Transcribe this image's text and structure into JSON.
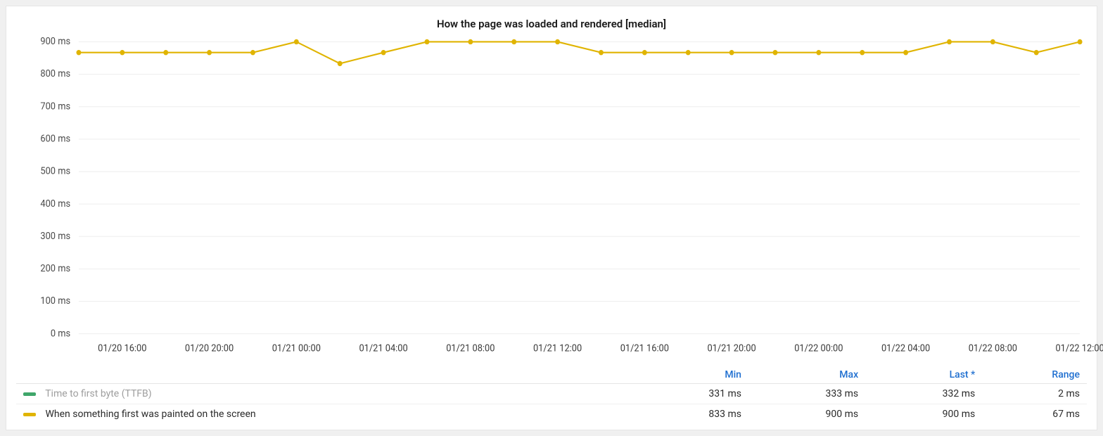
{
  "chart": {
    "type": "line",
    "title": "How the page was loaded and rendered [median]",
    "title_fontsize": 15,
    "title_fontweight": 600,
    "background_color": "#ffffff",
    "page_background": "#f0f0f0",
    "grid_color": "#eeeeee",
    "ylabel_color": "#4a4a4a",
    "xlabel_color": "#3a3a3a",
    "axis_fontsize": 13,
    "ylim": [
      0,
      900
    ],
    "ytick_step": 100,
    "yunit": "ms",
    "yticks": [
      "0 ms",
      "100 ms",
      "200 ms",
      "300 ms",
      "400 ms",
      "500 ms",
      "600 ms",
      "700 ms",
      "800 ms",
      "900 ms"
    ],
    "xticks": [
      "01/20 16:00",
      "01/20 20:00",
      "01/21 00:00",
      "01/21 04:00",
      "01/21 08:00",
      "01/21 12:00",
      "01/21 16:00",
      "01/21 20:00",
      "01/22 00:00",
      "01/22 04:00",
      "01/22 08:00",
      "01/22 12:00"
    ],
    "line_width": 2,
    "marker_radius": 3.5,
    "marker_style": "circle",
    "series": [
      {
        "name": "Time to first byte (TTFB)",
        "color": "#3fa66a",
        "visible": false,
        "data": []
      },
      {
        "name": "When something first was painted on the screen",
        "color": "#e0b400",
        "visible": true,
        "data": [
          {
            "x": "01/20 14:00",
            "y": 867
          },
          {
            "x": "01/20 16:00",
            "y": 867
          },
          {
            "x": "01/20 18:00",
            "y": 867
          },
          {
            "x": "01/20 20:00",
            "y": 867
          },
          {
            "x": "01/20 22:00",
            "y": 867
          },
          {
            "x": "01/21 00:00",
            "y": 900
          },
          {
            "x": "01/21 02:00",
            "y": 833
          },
          {
            "x": "01/21 04:00",
            "y": 867
          },
          {
            "x": "01/21 06:00",
            "y": 900
          },
          {
            "x": "01/21 08:00",
            "y": 900
          },
          {
            "x": "01/21 10:00",
            "y": 900
          },
          {
            "x": "01/21 12:00",
            "y": 900
          },
          {
            "x": "01/21 14:00",
            "y": 867
          },
          {
            "x": "01/21 16:00",
            "y": 867
          },
          {
            "x": "01/21 18:00",
            "y": 867
          },
          {
            "x": "01/21 20:00",
            "y": 867
          },
          {
            "x": "01/21 22:00",
            "y": 867
          },
          {
            "x": "01/22 00:00",
            "y": 867
          },
          {
            "x": "01/22 02:00",
            "y": 867
          },
          {
            "x": "01/22 04:00",
            "y": 867
          },
          {
            "x": "01/22 06:00",
            "y": 900
          },
          {
            "x": "01/22 08:00",
            "y": 900
          },
          {
            "x": "01/22 10:00",
            "y": 867
          },
          {
            "x": "01/22 12:00",
            "y": 900
          }
        ]
      }
    ]
  },
  "legend": {
    "header_color": "#1f6fd0",
    "columns": [
      "Min",
      "Max",
      "Last *",
      "Range"
    ],
    "rows": [
      {
        "swatch_color": "#3fa66a",
        "label": "Time to first byte (TTFB)",
        "disabled": true,
        "min": "331 ms",
        "max": "333 ms",
        "last": "332 ms",
        "range": "2 ms"
      },
      {
        "swatch_color": "#e0b400",
        "label": "When something first was painted on the screen",
        "disabled": false,
        "min": "833 ms",
        "max": "900 ms",
        "last": "900 ms",
        "range": "67 ms"
      }
    ]
  }
}
